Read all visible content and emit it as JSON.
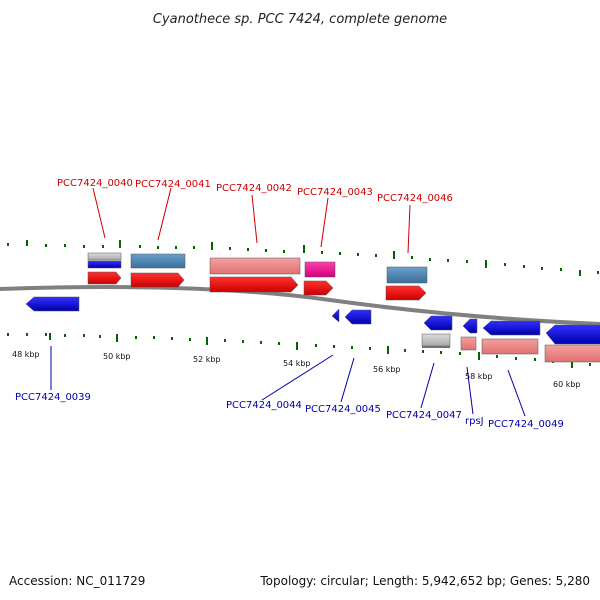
{
  "title": "Cyanothece sp. PCC 7424, complete genome",
  "footer": {
    "accession": "Accession: NC_011729",
    "summary": "Topology: circular; Length: 5,942,652 bp; Genes: 5,280"
  },
  "scale_labels": [
    "48 kbp",
    "50 kbp",
    "52 kbp",
    "54 kbp",
    "56 kbp",
    "58 kbp",
    "60 kbp"
  ],
  "gene_labels_top": [
    "PCC7424_0040",
    "PCC7424_0041",
    "PCC7424_0042",
    "PCC7424_0043",
    "PCC7424_0046"
  ],
  "gene_labels_bottom": [
    "PCC7424_0039",
    "PCC7424_0044",
    "PCC7424_0045",
    "PCC7424_0047",
    "rpsJ",
    "PCC7424_0049"
  ],
  "colors": {
    "cds_forward": "#ff0000",
    "cds_reverse": "#0000ff",
    "rna_salmon": "#f08080",
    "rna_steelblue": "#4682b4",
    "rna_magenta": "#ff1493",
    "grey_feature": "#c0c0c0",
    "tick_green": "#006400",
    "label_top": "#cc0000",
    "label_bottom": "#0000aa",
    "backbone": "#808080"
  }
}
